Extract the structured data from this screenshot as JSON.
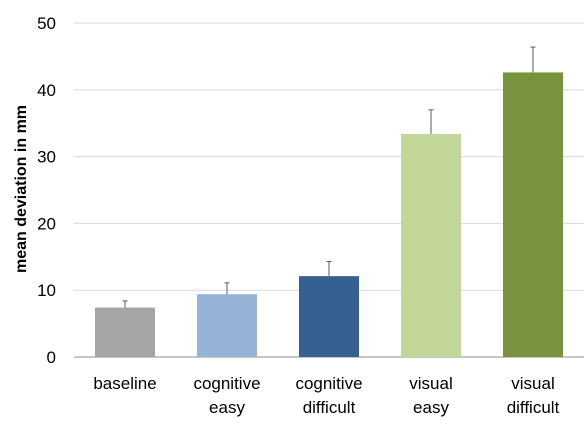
{
  "chart_data": {
    "type": "bar",
    "title": "",
    "xlabel": "",
    "ylabel": "mean deviation in mm",
    "ylim": [
      0,
      50
    ],
    "yticks": [
      0,
      10,
      20,
      30,
      40,
      50
    ],
    "grid": "horizontal",
    "legend": "none",
    "categories": [
      [
        "baseline"
      ],
      [
        "cognitive",
        "easy"
      ],
      [
        "cognitive",
        "difficult"
      ],
      [
        "visual",
        "easy"
      ],
      [
        "visual",
        "difficult"
      ]
    ],
    "values": [
      7.4,
      9.4,
      12.1,
      33.4,
      42.6
    ],
    "error_upper": [
      1.0,
      1.7,
      2.2,
      3.6,
      3.8
    ],
    "colors": [
      "#a5a5a5",
      "#95b3d7",
      "#366092",
      "#c4d79b",
      "#77933c"
    ]
  }
}
